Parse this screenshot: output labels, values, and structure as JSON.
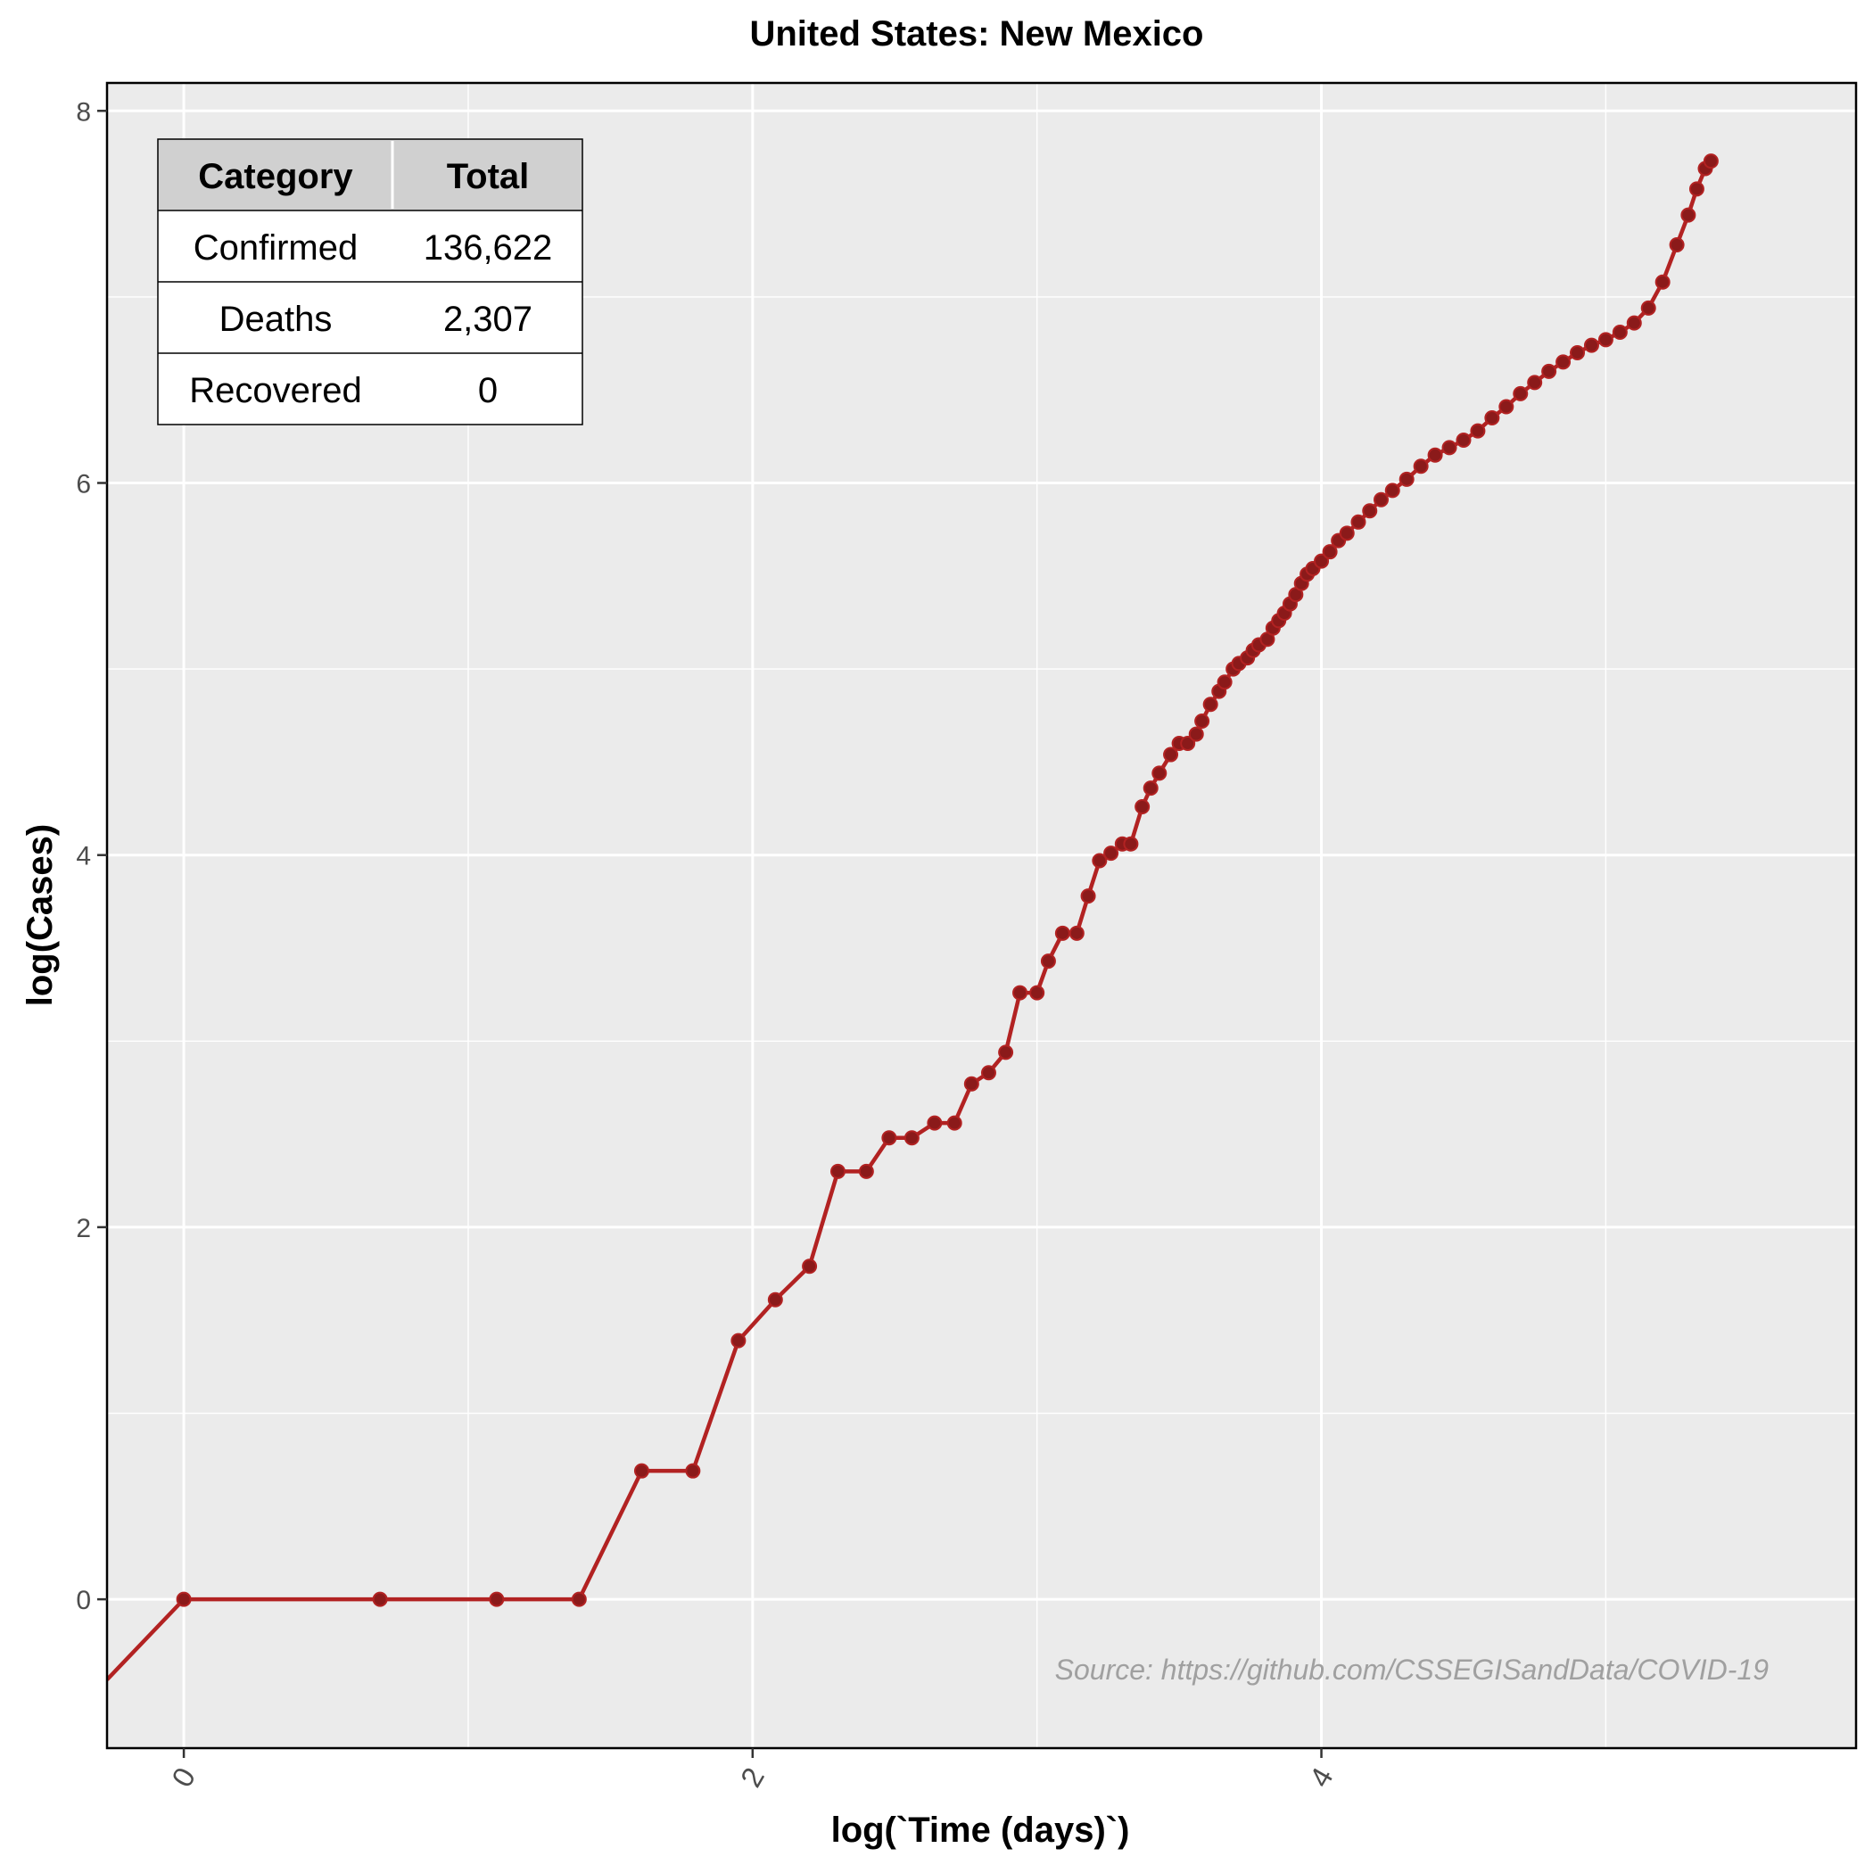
{
  "chart_data": {
    "type": "line",
    "title": "United States: New Mexico",
    "xlabel": "log(`Time (days)`)",
    "ylabel": "log(Cases)",
    "xlim": [
      -0.27,
      5.88
    ],
    "ylim": [
      -0.8,
      8.15
    ],
    "x_ticks": [
      0,
      2,
      4
    ],
    "x_tick_labels": [
      "0",
      "2",
      "4"
    ],
    "y_ticks": [
      0,
      2,
      4,
      6,
      8
    ],
    "y_tick_labels": [
      "0",
      "2",
      "4",
      "6",
      "8"
    ],
    "grid": true,
    "series": [
      {
        "color": "#B22222",
        "points": [
          [
            0.0,
            0.0
          ],
          [
            0.69,
            0.0
          ],
          [
            1.1,
            0.0
          ],
          [
            1.39,
            0.0
          ],
          [
            1.61,
            0.69
          ],
          [
            1.79,
            0.69
          ],
          [
            1.95,
            1.39
          ],
          [
            2.08,
            1.61
          ],
          [
            2.2,
            1.79
          ],
          [
            2.3,
            2.3
          ],
          [
            2.4,
            2.3
          ],
          [
            2.48,
            2.48
          ],
          [
            2.56,
            2.48
          ],
          [
            2.64,
            2.56
          ],
          [
            2.71,
            2.56
          ],
          [
            2.77,
            2.77
          ],
          [
            2.83,
            2.83
          ],
          [
            2.89,
            2.94
          ],
          [
            2.94,
            3.26
          ],
          [
            3.0,
            3.26
          ],
          [
            3.04,
            3.43
          ],
          [
            3.09,
            3.58
          ],
          [
            3.14,
            3.58
          ],
          [
            3.18,
            3.78
          ],
          [
            3.22,
            3.97
          ],
          [
            3.26,
            4.01
          ],
          [
            3.3,
            4.06
          ],
          [
            3.33,
            4.06
          ],
          [
            3.37,
            4.26
          ],
          [
            3.4,
            4.36
          ],
          [
            3.43,
            4.44
          ],
          [
            3.47,
            4.54
          ],
          [
            3.5,
            4.6
          ],
          [
            3.53,
            4.6
          ],
          [
            3.56,
            4.65
          ],
          [
            3.58,
            4.72
          ],
          [
            3.61,
            4.81
          ],
          [
            3.64,
            4.88
          ],
          [
            3.66,
            4.93
          ],
          [
            3.69,
            5.0
          ],
          [
            3.71,
            5.03
          ],
          [
            3.74,
            5.06
          ],
          [
            3.76,
            5.1
          ],
          [
            3.78,
            5.13
          ],
          [
            3.81,
            5.16
          ],
          [
            3.83,
            5.22
          ],
          [
            3.85,
            5.26
          ],
          [
            3.87,
            5.3
          ],
          [
            3.89,
            5.35
          ],
          [
            3.91,
            5.4
          ],
          [
            3.93,
            5.46
          ],
          [
            3.95,
            5.51
          ],
          [
            3.97,
            5.54
          ],
          [
            4.0,
            5.58
          ],
          [
            4.03,
            5.63
          ],
          [
            4.06,
            5.69
          ],
          [
            4.09,
            5.73
          ],
          [
            4.13,
            5.79
          ],
          [
            4.17,
            5.85
          ],
          [
            4.21,
            5.91
          ],
          [
            4.25,
            5.96
          ],
          [
            4.3,
            6.02
          ],
          [
            4.35,
            6.09
          ],
          [
            4.4,
            6.15
          ],
          [
            4.45,
            6.19
          ],
          [
            4.5,
            6.23
          ],
          [
            4.55,
            6.28
          ],
          [
            4.6,
            6.35
          ],
          [
            4.65,
            6.41
          ],
          [
            4.7,
            6.48
          ],
          [
            4.75,
            6.54
          ],
          [
            4.8,
            6.6
          ],
          [
            4.85,
            6.65
          ],
          [
            4.9,
            6.7
          ],
          [
            4.95,
            6.74
          ],
          [
            5.0,
            6.77
          ],
          [
            5.05,
            6.81
          ],
          [
            5.1,
            6.86
          ],
          [
            5.15,
            6.94
          ],
          [
            5.2,
            7.08
          ],
          [
            5.25,
            7.28
          ],
          [
            5.29,
            7.44
          ],
          [
            5.32,
            7.58
          ],
          [
            5.35,
            7.69
          ],
          [
            5.37,
            7.73
          ]
        ]
      }
    ]
  },
  "table": {
    "headers": [
      "Category",
      "Total"
    ],
    "rows": [
      [
        "Confirmed",
        "136,622"
      ],
      [
        "Deaths",
        "2,307"
      ],
      [
        "Recovered",
        "0"
      ]
    ]
  },
  "source_note": "Source: https://github.com/CSSEGISandData/COVID-19",
  "colors": {
    "line": "#B22222",
    "point_fill": "#8B1A1A",
    "panel_bg": "#EBEBEB",
    "grid": "#FFFFFF",
    "table_header_bg": "#D0D0D0",
    "source_text": "#A0A0A0"
  }
}
